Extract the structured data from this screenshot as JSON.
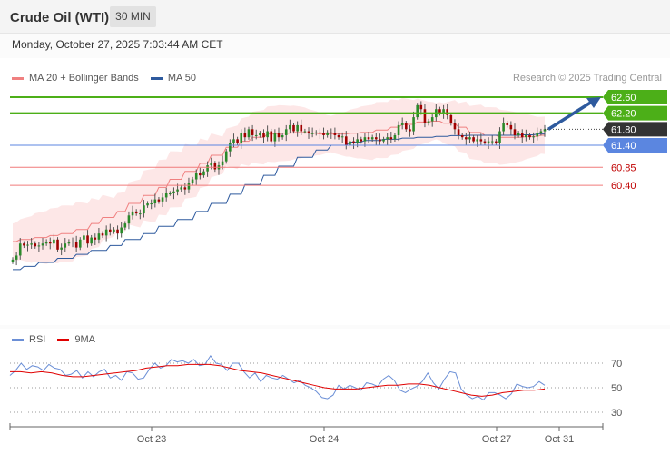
{
  "header": {
    "title": "Crude Oil (WTI)",
    "timeframe": "30 MIN"
  },
  "datetime": "Monday, October 27, 2025 7:03:44 AM CET",
  "credit": "Research © 2025 Trading Central",
  "legend_price": [
    {
      "label": "MA 20 + Bollinger Bands",
      "color": "#f08080"
    },
    {
      "label": "MA 50",
      "color": "#2e5a9e"
    }
  ],
  "legend_rsi": [
    {
      "label": "RSI",
      "color": "#6b8fd6"
    },
    {
      "label": "9MA",
      "color": "#e00000"
    }
  ],
  "colors": {
    "up": "#2a8a2a",
    "down": "#a00000",
    "resistance": "#4caf18",
    "support_major": "#5b86e0",
    "support_minor": "#f07a7a",
    "current": "#333333",
    "arrow": "#2e5a9e"
  },
  "chart_data": [
    {
      "type": "candlestick",
      "title": "Crude Oil (WTI)",
      "timeframe": "30 MIN",
      "ylim": [
        59.0,
        62.9
      ],
      "x_ticks": [
        "Oct 23",
        "Oct 24",
        "Oct 27",
        "Oct 31"
      ],
      "levels": [
        {
          "value": 62.6,
          "label": "62.60",
          "kind": "resistance"
        },
        {
          "value": 62.2,
          "label": "62.20",
          "kind": "resistance"
        },
        {
          "value": 61.8,
          "label": "61.80",
          "kind": "current"
        },
        {
          "value": 61.4,
          "label": "61.40",
          "kind": "support_major"
        },
        {
          "value": 60.85,
          "label": "60.85",
          "kind": "support_minor"
        },
        {
          "value": 60.4,
          "label": "60.40",
          "kind": "support_minor"
        }
      ],
      "close_series": [
        58.55,
        58.65,
        58.95,
        58.9,
        58.92,
        58.95,
        58.88,
        58.9,
        58.95,
        59.0,
        58.95,
        59.05,
        58.8,
        58.85,
        58.95,
        59.0,
        59.0,
        58.85,
        59.05,
        59.15,
        58.95,
        59.1,
        59.05,
        59.2,
        59.15,
        59.3,
        59.25,
        59.3,
        59.2,
        59.35,
        59.45,
        59.65,
        59.75,
        59.7,
        59.7,
        59.9,
        59.95,
        59.95,
        60.05,
        60.0,
        60.1,
        60.2,
        60.2,
        60.25,
        60.3,
        60.35,
        60.3,
        60.45,
        60.55,
        60.7,
        60.65,
        60.75,
        60.9,
        60.95,
        60.8,
        60.9,
        61.0,
        61.25,
        61.45,
        61.55,
        61.45,
        61.7,
        61.6,
        61.8,
        61.65,
        61.65,
        61.7,
        61.6,
        61.75,
        61.5,
        61.7,
        61.6,
        61.65,
        61.8,
        61.9,
        61.75,
        61.9,
        61.75,
        61.75,
        61.7,
        61.7,
        61.72,
        61.7,
        61.65,
        61.72,
        61.7,
        61.65,
        61.6,
        61.62,
        61.4,
        61.5,
        61.45,
        61.55,
        61.5,
        61.6,
        61.55,
        61.6,
        61.55,
        61.5,
        61.55,
        61.6,
        61.55,
        61.65,
        61.9,
        61.95,
        61.8,
        61.75,
        62.1,
        62.4,
        62.3,
        61.95,
        62.0,
        62.1,
        62.3,
        62.2,
        62.3,
        62.15,
        61.95,
        61.8,
        61.65,
        61.6,
        61.55,
        61.6,
        61.5,
        61.55,
        61.5,
        61.45,
        61.5,
        61.5,
        61.45,
        61.75,
        61.95,
        61.9,
        61.8,
        61.65,
        61.7,
        61.6,
        61.65,
        61.6,
        61.62,
        61.7,
        61.75,
        61.8
      ],
      "ma20": [
        59.0,
        59.05,
        59.1,
        59.15,
        59.2,
        59.3,
        59.45,
        59.6,
        59.75,
        59.95,
        60.15,
        60.35,
        60.55,
        60.75,
        60.95,
        61.15,
        61.35,
        61.5,
        61.6,
        61.68,
        61.7,
        61.72,
        61.7,
        61.68,
        61.68,
        61.7,
        61.72,
        61.78,
        61.85,
        61.92,
        61.98,
        62.0,
        61.95,
        61.85,
        61.72,
        61.65,
        61.6,
        61.6,
        61.62,
        61.65
      ],
      "ma50": [
        58.3,
        58.38,
        58.48,
        58.58,
        58.68,
        58.78,
        58.9,
        59.05,
        59.2,
        59.38,
        59.55,
        59.75,
        59.95,
        60.18,
        60.42,
        60.65,
        60.88,
        61.1,
        61.28,
        61.4,
        61.48,
        61.52,
        61.55,
        61.58,
        61.6,
        61.62,
        61.64,
        61.65,
        61.65,
        61.65,
        61.66,
        61.68
      ]
    },
    {
      "type": "line",
      "title": "RSI",
      "ylim": [
        25,
        80
      ],
      "y_ticks": [
        70,
        50,
        30
      ],
      "series": [
        {
          "name": "RSI",
          "values": [
            60,
            64,
            70,
            65,
            68,
            67,
            64,
            69,
            66,
            65,
            60,
            61,
            64,
            58,
            63,
            59,
            63,
            65,
            58,
            60,
            56,
            63,
            62,
            57,
            58,
            65,
            70,
            66,
            68,
            73,
            71,
            72,
            70,
            73,
            68,
            69,
            76,
            70,
            69,
            64,
            70,
            70,
            63,
            58,
            62,
            55,
            60,
            58,
            57,
            60,
            57,
            54,
            56,
            52,
            50,
            47,
            42,
            41,
            44,
            52,
            49,
            52,
            50,
            48,
            54,
            53,
            51,
            57,
            60,
            56,
            48,
            46,
            49,
            51,
            55,
            62,
            54,
            49,
            57,
            63,
            62,
            49,
            44,
            41,
            43,
            40,
            46,
            46,
            44,
            41,
            45,
            53,
            51,
            50,
            51,
            55,
            52
          ]
        },
        {
          "name": "9MA",
          "values": [
            63,
            63,
            62,
            63,
            62,
            60,
            59,
            59,
            60,
            61,
            62,
            63,
            64,
            66,
            67,
            68,
            68,
            69,
            69,
            69,
            68,
            66,
            64,
            63,
            62,
            60,
            58,
            56,
            54,
            52,
            50,
            49,
            49,
            49,
            50,
            51,
            52,
            52,
            53,
            53,
            52,
            50,
            48,
            46,
            44,
            43,
            44,
            46,
            47,
            48,
            48,
            49
          ]
        }
      ]
    }
  ]
}
